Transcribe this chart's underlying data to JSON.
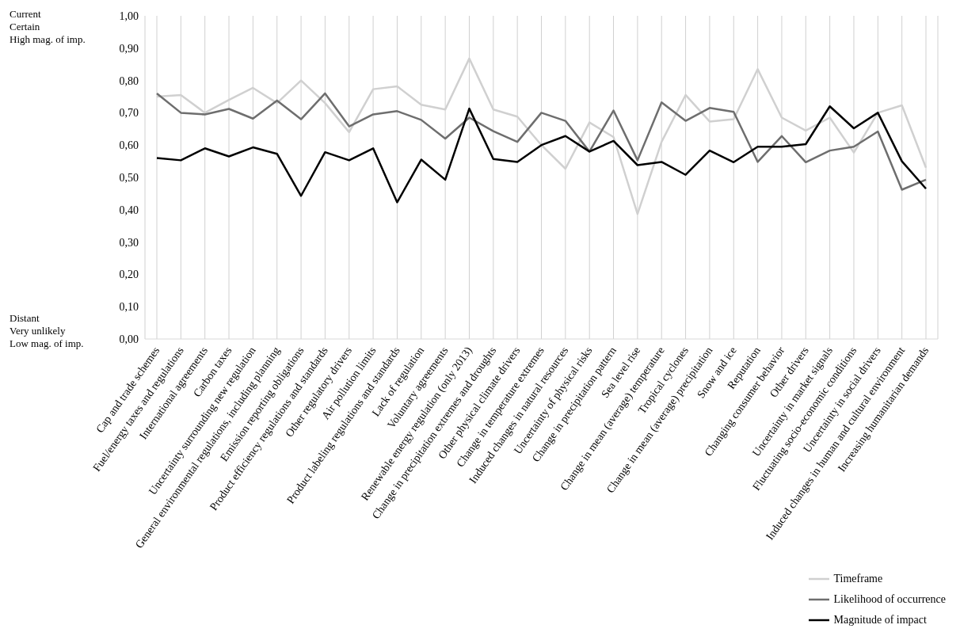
{
  "chart_data": {
    "type": "line",
    "categories": [
      "Cap and trade schemes",
      "Fuel/energy taxes and regulations",
      "International agreements",
      "Carbon taxes",
      "Uncertainty surrounding new regulation",
      "General environmental regulations, including planning",
      "Emission reporting obligations",
      "Product efficiency regulations and standards",
      "Other regulatory drivers",
      "Air pollution limits",
      "Product labeling regulations and standards",
      "Lack of regulation",
      "Voluntary agreements",
      "Renewable energy regulation (only 2013)",
      "Change in precipitation extremes and droughts",
      "Other physical climate drivers",
      "Change in temperature extremes",
      "Induced changes in natural resources",
      "Uncertainty of physical risks",
      "Change in precipitation pattern",
      "Sea level rise",
      "Change in mean (average) temperature",
      "Tropical cyclones",
      "Change in mean (average) precipitation",
      "Snow and ice",
      "Reputation",
      "Changing consumer behavior",
      "Other drivers",
      "Uncertainty in market signals",
      "Fluctuating socio-economic conditions",
      "Uncertainty in social drivers",
      "Induced changes in human and cultural environment",
      "Increasing humanitarian demands"
    ],
    "series": [
      {
        "name": "Timeframe",
        "color": "#d0d0d0",
        "values": [
          0.75,
          0.755,
          0.7,
          0.74,
          0.777,
          0.73,
          0.8,
          0.73,
          0.64,
          0.773,
          0.782,
          0.725,
          0.71,
          0.868,
          0.71,
          0.688,
          0.6,
          0.527,
          0.67,
          0.625,
          0.387,
          0.61,
          0.755,
          0.673,
          0.68,
          0.835,
          0.685,
          0.645,
          0.685,
          0.577,
          0.7,
          0.723,
          0.53
        ]
      },
      {
        "name": "Likelihood of occurrence",
        "color": "#6e6e6e",
        "values": [
          0.76,
          0.7,
          0.695,
          0.712,
          0.682,
          0.738,
          0.68,
          0.76,
          0.658,
          0.695,
          0.705,
          0.678,
          0.62,
          0.685,
          0.643,
          0.61,
          0.7,
          0.675,
          0.58,
          0.707,
          0.553,
          0.732,
          0.675,
          0.715,
          0.703,
          0.548,
          0.628,
          0.547,
          0.583,
          0.595,
          0.642,
          0.462,
          0.493
        ]
      },
      {
        "name": "Magnitude of impact",
        "color": "#000000",
        "values": [
          0.56,
          0.553,
          0.59,
          0.565,
          0.593,
          0.573,
          0.443,
          0.578,
          0.553,
          0.59,
          0.423,
          0.555,
          0.493,
          0.713,
          0.557,
          0.548,
          0.6,
          0.628,
          0.58,
          0.613,
          0.538,
          0.548,
          0.508,
          0.583,
          0.547,
          0.595,
          0.595,
          0.603,
          0.72,
          0.652,
          0.7,
          0.55,
          0.465
        ]
      }
    ],
    "ylim": [
      0,
      1
    ],
    "yticks": [
      {
        "value": 0,
        "label": "0,00"
      },
      {
        "value": 0.1,
        "label": "0,10"
      },
      {
        "value": 0.2,
        "label": "0,20"
      },
      {
        "value": 0.3,
        "label": "0,30"
      },
      {
        "value": 0.4,
        "label": "0,40"
      },
      {
        "value": 0.5,
        "label": "0,50"
      },
      {
        "value": 0.6,
        "label": "0,60"
      },
      {
        "value": 0.7,
        "label": "0,70"
      },
      {
        "value": 0.8,
        "label": "0,80"
      },
      {
        "value": 0.9,
        "label": "0,90"
      },
      {
        "value": 1,
        "label": "1,00"
      }
    ],
    "grid": "x",
    "legend": "bottom right",
    "marker": "none",
    "line_style": "solid",
    "annotations": [
      "Current\nCertain\nHigh mag. of imp.",
      "Distant\nVery unlikely\nLow mag. of imp."
    ]
  }
}
